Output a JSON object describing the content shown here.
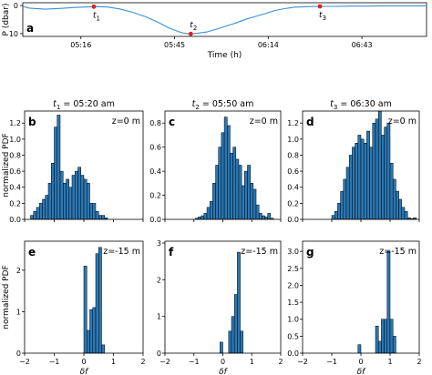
{
  "chart_data": [
    {
      "id": "a",
      "type": "line",
      "panel_label": "a",
      "xlabel": "Time (h)",
      "ylabel": "P (dbar)",
      "x_ticks": [
        "05:16",
        "05:45",
        "06:14",
        "06:43"
      ],
      "y_ticks": [
        "0",
        "10"
      ],
      "ylim": [
        11,
        -1
      ],
      "xlim": [
        "04:58",
        "07:03"
      ],
      "line_color": "#3a8fd0",
      "marker_color": "#e0201b",
      "series": [
        {
          "x": [
            "04:58",
            "05:00",
            "05:05",
            "05:10",
            "05:14",
            "05:18",
            "05:20",
            "05:24",
            "05:28",
            "05:32",
            "05:36",
            "05:40",
            "05:43",
            "05:46",
            "05:48",
            "05:50",
            "05:52",
            "05:55",
            "05:58",
            "06:01",
            "06:04",
            "06:07",
            "06:10",
            "06:13",
            "06:16",
            "06:19",
            "06:22",
            "06:26",
            "06:30",
            "06:35",
            "06:40",
            "06:45",
            "06:50",
            "06:55",
            "07:00",
            "07:03"
          ],
          "values": [
            0.3,
            0.9,
            1.3,
            1.0,
            0.7,
            0.5,
            0.4,
            0.5,
            1.2,
            2.4,
            4.0,
            6.0,
            7.9,
            9.2,
            9.9,
            10.1,
            9.9,
            9.4,
            8.4,
            7.3,
            6.2,
            4.9,
            3.9,
            2.9,
            1.8,
            1.1,
            0.6,
            0.4,
            0.3,
            0.3,
            0.2,
            0.2,
            0.1,
            0.1,
            0.1,
            0.1
          ]
        }
      ],
      "markers": [
        {
          "label_base": "t",
          "label_sub": "1",
          "x": "05:20",
          "y": 0.4
        },
        {
          "label_base": "t",
          "label_sub": "2",
          "x": "05:50",
          "y": 10.1
        },
        {
          "label_base": "t",
          "label_sub": "3",
          "x": "06:30",
          "y": 0.3
        }
      ]
    },
    {
      "id": "b",
      "type": "bar",
      "panel_label": "b",
      "title_base": "t",
      "title_sub": "1",
      "title_rest": " = 05:20 am",
      "annotation": "z=0 m",
      "ylabel": "normalized PDF",
      "xlabel": "",
      "xlim": [
        -2,
        2
      ],
      "ylim": [
        0,
        1.35
      ],
      "x_ticks": [],
      "y_ticks": [
        "0.0",
        "0.2",
        "0.4",
        "0.6",
        "0.8",
        "1.0",
        "1.2"
      ],
      "y_tick_values": [
        0,
        0.2,
        0.4,
        0.6,
        0.8,
        1.0,
        1.2
      ],
      "bar_color": "#2a78b5",
      "bin_start": -1.8,
      "bin_width": 0.1,
      "values": [
        0.05,
        0.1,
        0.15,
        0.2,
        0.25,
        0.3,
        0.45,
        0.7,
        1.15,
        1.3,
        0.6,
        0.45,
        0.5,
        0.4,
        0.55,
        0.6,
        0.65,
        0.55,
        0.5,
        0.45,
        0.2,
        0.2,
        0.1,
        0.05,
        0.05,
        0.02
      ]
    },
    {
      "id": "c",
      "type": "bar",
      "panel_label": "c",
      "title_base": "t",
      "title_sub": "2",
      "title_rest": " = 05:50 am",
      "annotation": "z=0 m",
      "ylabel": "",
      "xlabel": "",
      "xlim": [
        -2,
        2
      ],
      "ylim": [
        0,
        0.9
      ],
      "x_ticks": [],
      "y_ticks": [
        "0.0",
        "0.2",
        "0.4",
        "0.6",
        "0.8"
      ],
      "y_tick_values": [
        0,
        0.2,
        0.4,
        0.6,
        0.8
      ],
      "bar_color": "#2a78b5",
      "bin_start": -0.95,
      "bin_width": 0.1,
      "values": [
        0.01,
        0.02,
        0.03,
        0.05,
        0.1,
        0.15,
        0.3,
        0.45,
        0.6,
        0.72,
        0.85,
        0.78,
        0.55,
        0.6,
        0.5,
        0.45,
        0.28,
        0.4,
        0.45,
        0.3,
        0.25,
        0.12,
        0.05,
        0.03,
        0.02,
        0.05,
        0.01
      ]
    },
    {
      "id": "d",
      "type": "bar",
      "panel_label": "d",
      "title_base": "t",
      "title_sub": "3",
      "title_rest": " = 06:30 am",
      "annotation": "z=0 m",
      "ylabel": "",
      "xlabel": "",
      "xlim": [
        -2,
        2
      ],
      "ylim": [
        0,
        1.35
      ],
      "x_ticks": [],
      "y_ticks": [
        "0.0",
        "0.2",
        "0.4",
        "0.6",
        "0.8",
        "1.0",
        "1.2"
      ],
      "y_tick_values": [
        0,
        0.2,
        0.4,
        0.6,
        0.8,
        1.0,
        1.2
      ],
      "bar_color": "#2a78b5",
      "bin_start": -1.0,
      "bin_width": 0.1,
      "values": [
        0.05,
        0.1,
        0.2,
        0.35,
        0.5,
        0.65,
        0.8,
        0.9,
        0.95,
        1.05,
        1.0,
        0.95,
        1.1,
        0.9,
        1.2,
        1.25,
        1.35,
        1.05,
        1.15,
        1.2,
        0.7,
        0.5,
        0.35,
        0.25,
        0.15,
        0.1,
        0.02,
        0.01,
        0.02
      ]
    },
    {
      "id": "e",
      "type": "bar",
      "panel_label": "e",
      "annotation": "z=-15 m",
      "ylabel": "normalized PDF",
      "xlabel": "δf",
      "xlim": [
        -2,
        2
      ],
      "ylim": [
        0,
        2.7
      ],
      "x_ticks": [
        "−2",
        "−1",
        "0",
        "1",
        "2"
      ],
      "x_tick_values": [
        -2,
        -1,
        0,
        1,
        2
      ],
      "y_ticks": [
        "0",
        "1",
        "2"
      ],
      "y_tick_values": [
        0,
        1,
        2
      ],
      "bar_color": "#2a78b5",
      "bin_start": -0.1,
      "bin_width": 0.1,
      "values": [
        0.0,
        2.1,
        0.55,
        1.05,
        1.1,
        2.4,
        2.55,
        0.2
      ]
    },
    {
      "id": "f",
      "type": "bar",
      "panel_label": "f",
      "annotation": "z=-15 m",
      "ylabel": "",
      "xlabel": "δf",
      "xlim": [
        -2,
        2
      ],
      "ylim": [
        0,
        3.05
      ],
      "x_ticks": [
        "−2",
        "−1",
        "0",
        "1",
        "2"
      ],
      "x_tick_values": [
        -2,
        -1,
        0,
        1,
        2
      ],
      "y_ticks": [
        "0",
        "1",
        "2",
        "3"
      ],
      "y_tick_values": [
        0,
        1,
        2,
        3
      ],
      "bar_color": "#2a78b5",
      "bin_start": -0.1,
      "bin_width": 0.1,
      "values": [
        0.3,
        0.0,
        0.0,
        0.6,
        1.0,
        1.6,
        2.75,
        0.6
      ]
    },
    {
      "id": "g",
      "type": "bar",
      "panel_label": "g",
      "annotation": "z=-15 m",
      "ylabel": "",
      "xlabel": "δf",
      "xlim": [
        -2,
        2
      ],
      "ylim": [
        0,
        3.3
      ],
      "x_ticks": [
        "−2",
        "−1",
        "0",
        "1",
        "2"
      ],
      "x_tick_values": [
        -2,
        -1,
        0,
        1,
        2
      ],
      "y_ticks": [
        "0.0",
        "0.5",
        "1.0",
        "1.5",
        "2.0",
        "2.5",
        "3.0"
      ],
      "y_tick_values": [
        0,
        0.5,
        1.0,
        1.5,
        2.0,
        2.5,
        3.0
      ],
      "bar_color": "#2a78b5",
      "bin_start": -0.1,
      "bin_width": 0.1,
      "values": [
        0.25,
        0.0,
        0.0,
        0.0,
        0.0,
        0.0,
        0.8,
        0.35,
        1.0,
        1.0,
        3.0,
        1.0,
        0.5
      ]
    }
  ]
}
